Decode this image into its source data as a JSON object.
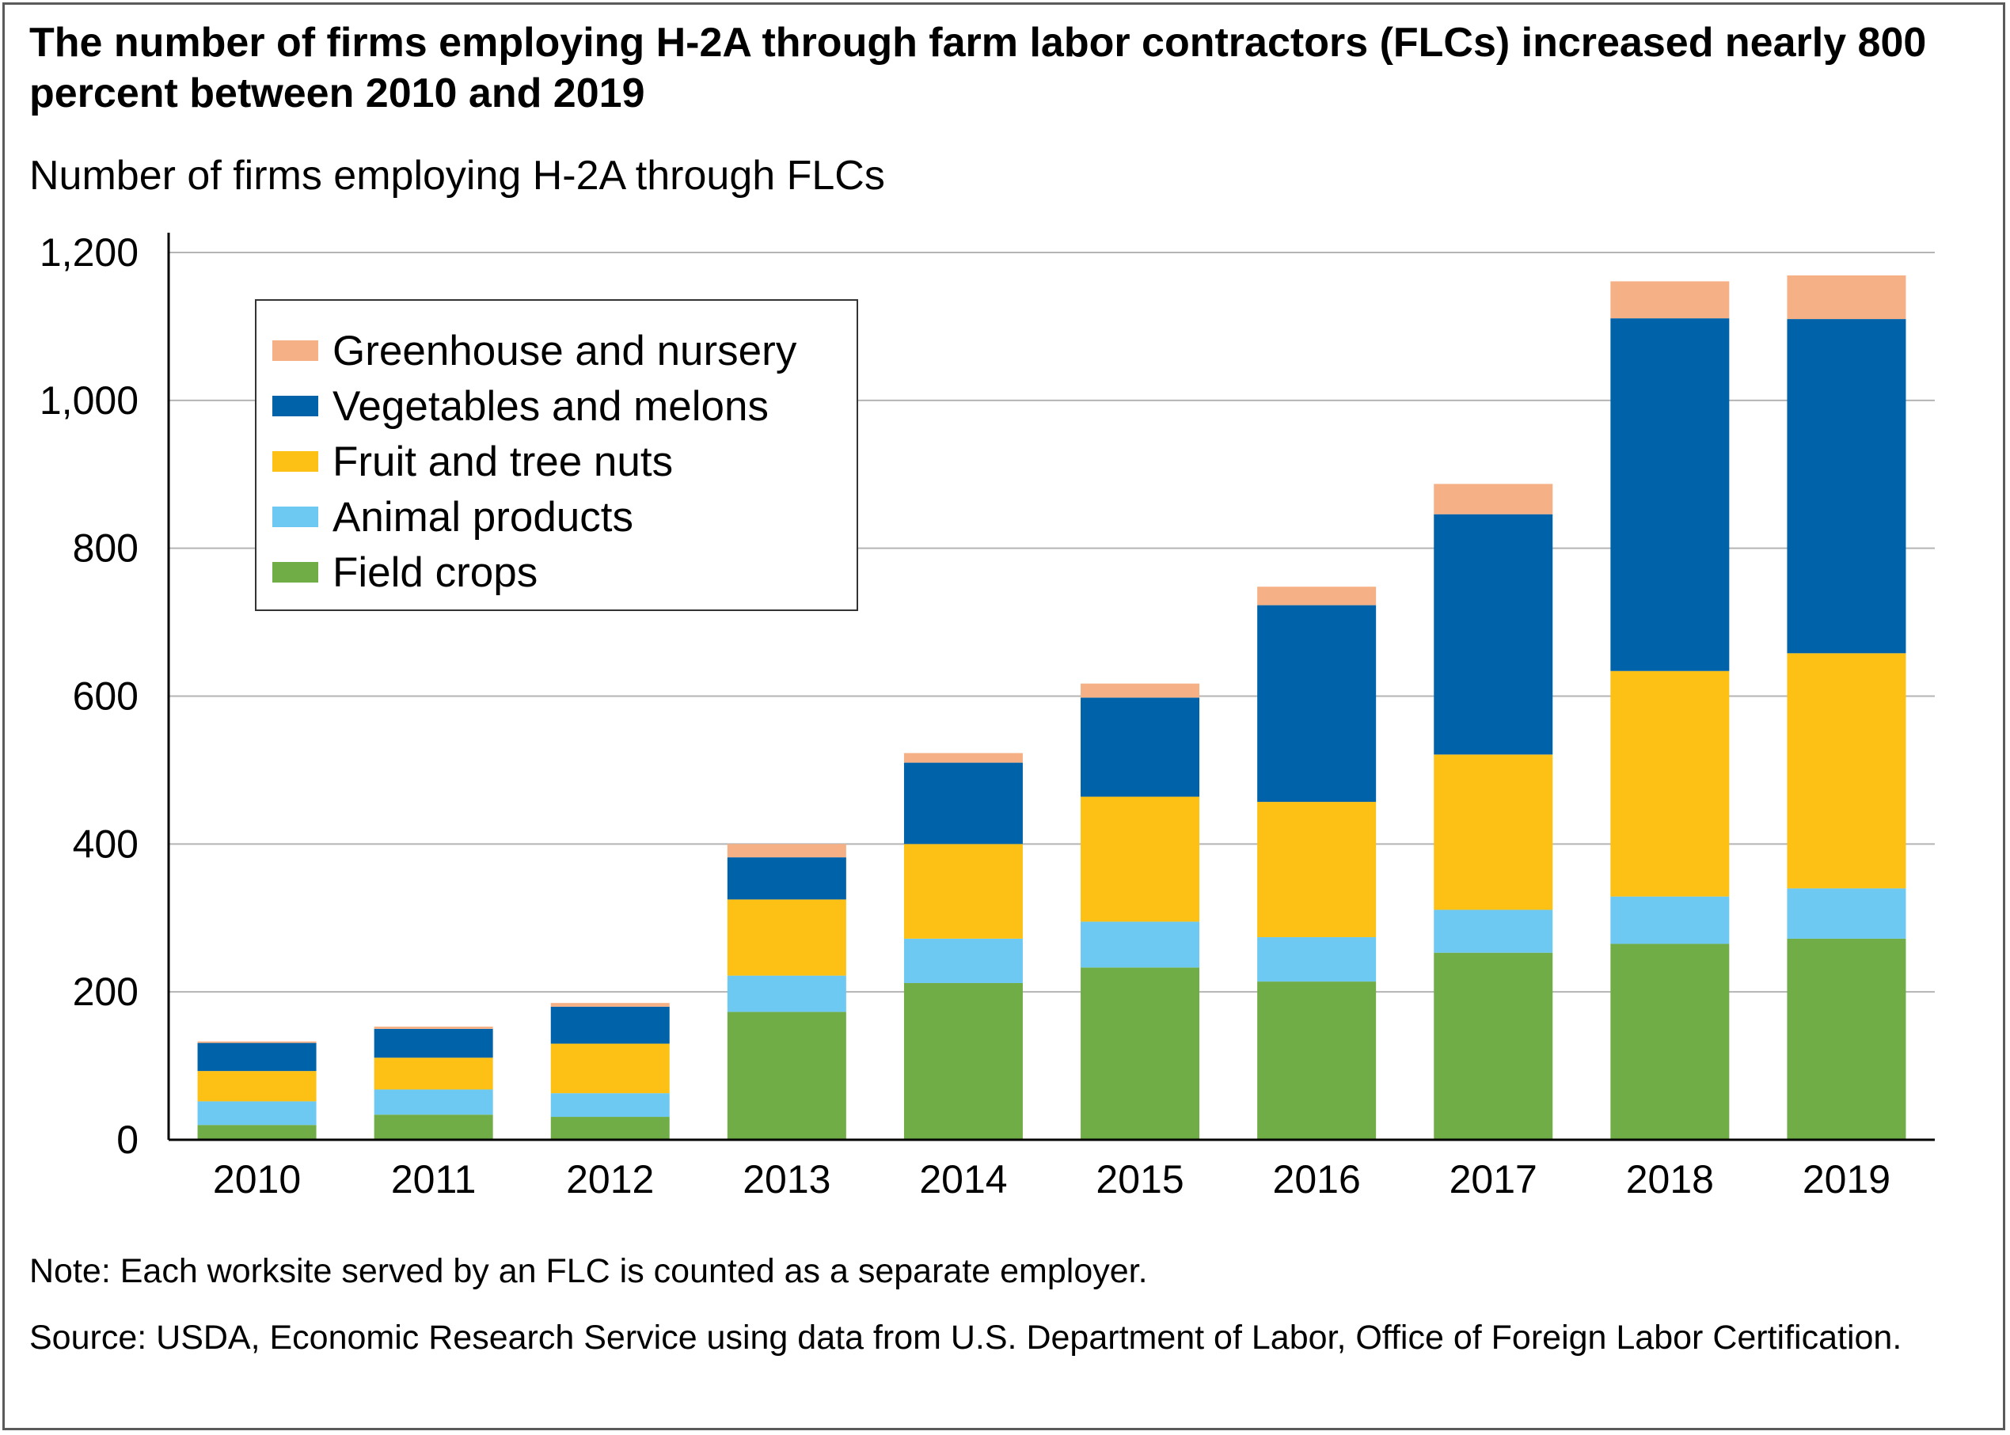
{
  "title": "The number of firms employing H-2A through farm labor contractors (FLCs) increased nearly 800 percent between 2010 and 2019",
  "subtitle": "Number of firms employing H-2A through FLCs",
  "note": "Note: Each worksite served by an FLC is counted as a separate employer.",
  "source": "Source: USDA, Economic Research Service using data from U.S. Department of Labor, Office of Foreign Labor Certification.",
  "chart_data": {
    "type": "bar",
    "stacked": true,
    "categories": [
      "2010",
      "2011",
      "2012",
      "2013",
      "2014",
      "2015",
      "2016",
      "2017",
      "2018",
      "2019"
    ],
    "ylim": [
      0,
      1200
    ],
    "yticks": [
      0,
      200,
      400,
      600,
      800,
      1000,
      1200
    ],
    "ytick_labels": [
      "0",
      "200",
      "400",
      "600",
      "800",
      "1,000",
      "1,200"
    ],
    "grid": true,
    "legend_position": "top-left",
    "series": [
      {
        "name": "Field crops",
        "color": "#70ad47",
        "values": [
          20,
          34,
          31,
          173,
          212,
          233,
          214,
          253,
          265,
          272
        ]
      },
      {
        "name": "Animal products",
        "color": "#6dc8f2",
        "values": [
          32,
          34,
          32,
          49,
          60,
          62,
          60,
          58,
          64,
          68
        ]
      },
      {
        "name": "Fruit and tree nuts",
        "color": "#fcc114",
        "values": [
          41,
          43,
          67,
          103,
          128,
          169,
          183,
          210,
          305,
          318
        ]
      },
      {
        "name": "Vegetables and melons",
        "color": "#0063aa",
        "values": [
          38,
          39,
          50,
          57,
          110,
          134,
          266,
          325,
          477,
          452
        ]
      },
      {
        "name": "Greenhouse and nursery",
        "color": "#f5b185",
        "values": [
          2,
          3,
          5,
          18,
          13,
          19,
          25,
          41,
          50,
          59
        ]
      }
    ],
    "legend": [
      "Greenhouse and nursery",
      "Vegetables and melons",
      "Fruit and tree nuts",
      "Animal products",
      "Field crops"
    ]
  }
}
